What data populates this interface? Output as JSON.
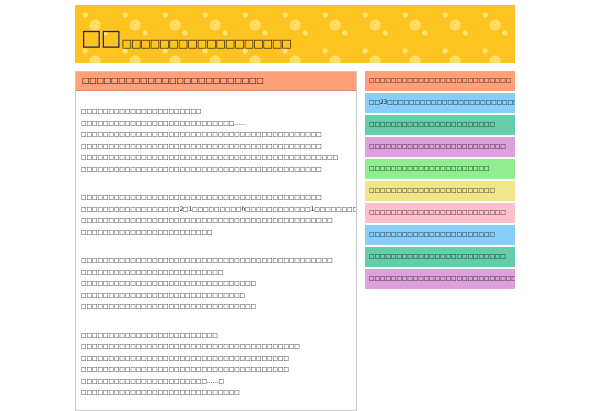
{
  "header": {
    "title_big": "□□",
    "title_small": "□□□□□□□□□□□□□□□□□□"
  },
  "main": {
    "heading": "□□□□□□□□□□□□□□□□□□□□□□□□□",
    "paragraphs": [
      [
        "□□□□□□□□□□□□□□□□□□□□□□",
        "□□□□□□□□□□□□□□□□□□□□□□□□□□□□……",
        "□□□□□□□□□□□□□□□□□□□□□□□□□□□□□□□□□□□□□□□□□□□□",
        "□□□□□□□□□□□□□□□□□□□□□□□□□□□□□□□□□□□□□□□□□□□□",
        "□□□□□□□□□□□□□□□□□□□□□□□□□□□□□□□□□□□□□□□□□□□□□□□",
        "□□□□□□□□□□□□□□□□□□□□□□□□□□□□□□□□□□□□□□□□□□□□"
      ],
      [
        "□□□□□□□□□□□□□□□□□□□□□□□□□□□□□□□□□□□□□□□□□□□□",
        "□□□□□□□□□□□□□□□□□□2□1□□□□□□□□□h□□□□□□□□□□□□1□□□□□□□□□□□□□□□□□□□□",
        "□□□□□□□□□□□□□□□□□□□□□□□□□□□□□□□□□□□□□□□□□□□□□□",
        "□□□□□□□□□□□□□□□□□□□□□□□□"
      ],
      [
        "□□□□□□□□□□□□□□□□□□□□□□□□□□□□□□□□□□□□□□□□□□□□□□",
        "□□□□□□□□□□□□□□□□□□□□□□□□□□",
        "□□□□□□□□□□□□□□□□□□□□□□□□□□□□□□□□",
        "□□□□□□□□□□□□□□□□□□□□□□□□□□□□□□",
        "□□□□□□□□□□□□□□□□□□□□□□□□□□□□□□□□"
      ],
      [
        "□□□□□□□□□□□□□□□□□□□□□□□□□",
        "□□□□□□□□□□□□□□□□□□□□□□□□□□□□□□□□□□□□□□□□",
        "□□□□□□□□□□□□□□□□□□□□□□□□□□□□□□□□□□□□□□",
        "□□□□□□□□□□□□□□□□□□□□□□□□□□□□□□□□□□□□□□",
        "□□□□□□□□□□□□□□□□□□□□□□□……□",
        "□□□□□□□□□□□□□□□□□□□□□□□□□□□□□"
      ]
    ]
  },
  "sidebar": {
    "items": [
      {
        "label": "□□□□□□□□□□□□□□□□□□□□□□□□□□",
        "color": "#ffa07a"
      },
      {
        "label": "□□23□□□□□□□□□□□□□□□□□□□□□□□□□",
        "color": "#87cefa"
      },
      {
        "label": "□□□□□□□□□□□□□□□□□□□□□□□",
        "color": "#66cdaa"
      },
      {
        "label": "□□□□□□□□□□□□□□□□□□□□□□□□□",
        "color": "#dda0dd"
      },
      {
        "label": "□□□□□□□□□□□□□□□□□□□□□□",
        "color": "#90ee90"
      },
      {
        "label": "□□□□□□□□□□□□□□□□□□□□□□□",
        "color": "#f0e68c"
      },
      {
        "label": "□□□□□□□□□□□□□□□□□□□□□□□□□",
        "color": "#ffc0cb"
      },
      {
        "label": "□□□□□□□□□□□□□□□□□□□□□□□",
        "color": "#87cefa"
      },
      {
        "label": "□□□□□□□□□□□□□□□□□□□□□□□□□",
        "color": "#66cdaa"
      },
      {
        "label": "□□□□□□□□□□□□□□□□□□□□□□□□□□□□□",
        "color": "#dda0dd"
      }
    ]
  }
}
